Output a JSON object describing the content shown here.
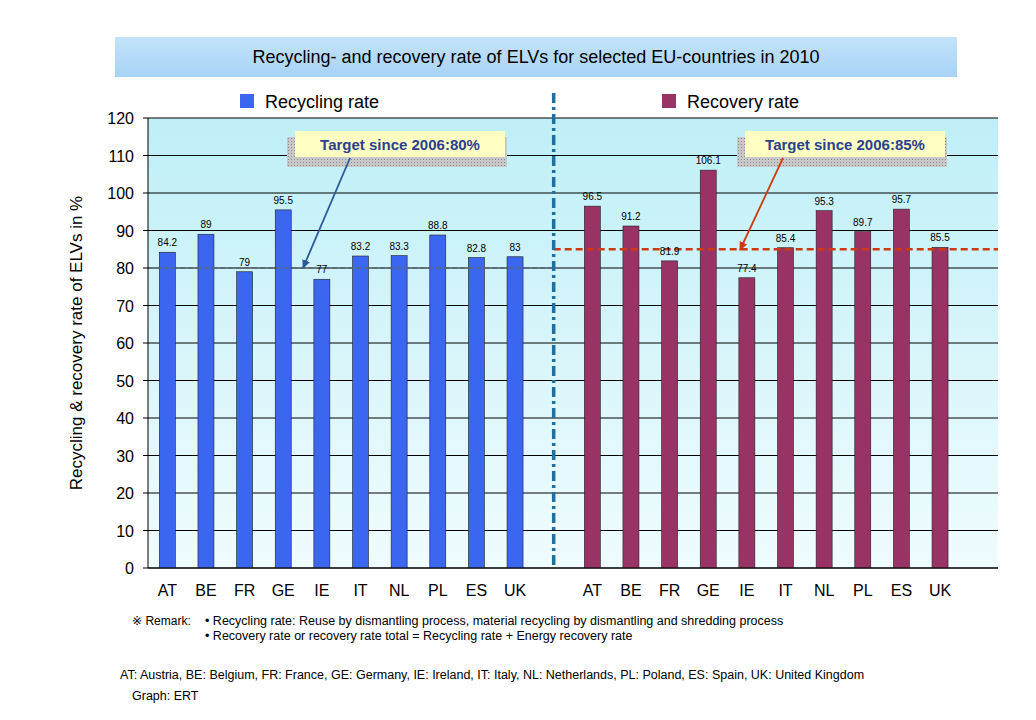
{
  "chart_data": {
    "type": "bar",
    "title": "Recycling- and recovery rate of ELVs for selected EU-countries in 2010",
    "y_label": "Recycling & recovery rate of ELVs  in %",
    "categories": [
      "AT",
      "BE",
      "FR",
      "GE",
      "IE",
      "IT",
      "NL",
      "PL",
      "ES",
      "UK"
    ],
    "series": [
      {
        "name": "Recycling rate",
        "color": "#3a66f0",
        "values": [
          84.2,
          89,
          79,
          95.5,
          77,
          83.2,
          83.3,
          88.8,
          82.8,
          83
        ],
        "target": 80,
        "target_label": "Target since 2006:80%"
      },
      {
        "name": "Recovery rate",
        "color": "#993366",
        "values": [
          96.5,
          91.2,
          81.9,
          106.1,
          77.4,
          85.4,
          95.3,
          89.7,
          95.7,
          85.5
        ],
        "target": 85,
        "target_label": "Target since 2006:85%"
      }
    ],
    "ylim": [
      0,
      120
    ],
    "yticks": [
      0,
      10,
      20,
      30,
      40,
      50,
      60,
      70,
      80,
      90,
      100,
      110,
      120
    ],
    "grid": true,
    "data_labels": true,
    "notes_title": "※ Remark:",
    "notes": [
      "• Recycling rate: Reuse by dismantling process, material recycling by dismantling and shredding process",
      "• Recovery rate or recovery rate total = Recycling rate + Energy  recovery rate"
    ],
    "footer": [
      "AT: Austria, BE: Belgium, FR: France, GE: Germany, IE: Ireland, IT: Italy, NL: Netherlands, PL: Poland, ES: Spain, UK: United Kingdom",
      "Graph: ERT"
    ]
  }
}
